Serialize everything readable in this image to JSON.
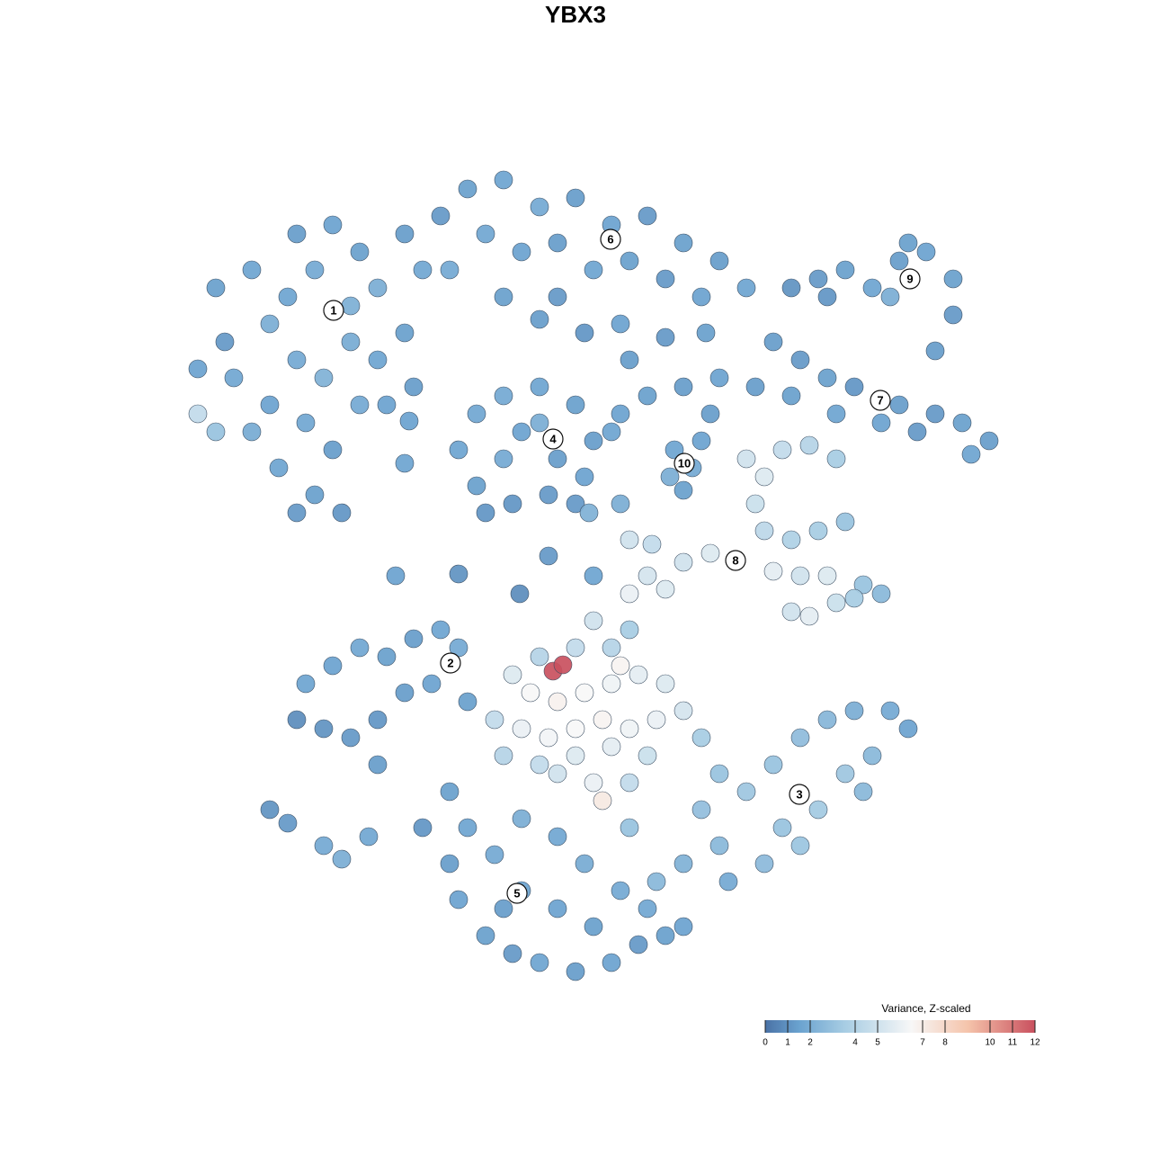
{
  "chart_data": {
    "type": "scatter",
    "title": "YBX3",
    "xlim": [
      190,
      1140
    ],
    "ylim": [
      1100,
      180
    ],
    "x": [
      220,
      250,
      240,
      280,
      300,
      330,
      350,
      370,
      400,
      420,
      450,
      470,
      490,
      330,
      360,
      390,
      420,
      450,
      300,
      340,
      370,
      310,
      350,
      380,
      330,
      280,
      400,
      430,
      460,
      220,
      240,
      260,
      390,
      320,
      520,
      560,
      600,
      640,
      680,
      720,
      760,
      800,
      830,
      540,
      580,
      620,
      660,
      700,
      740,
      780,
      500,
      560,
      620,
      690,
      700,
      650,
      600,
      560,
      600,
      640,
      660,
      650,
      610,
      570,
      530,
      510,
      530,
      580,
      620,
      560,
      600,
      640,
      540,
      880,
      910,
      940,
      970,
      1000,
      1030,
      1060,
      1060,
      1040,
      990,
      920,
      1010,
      860,
      890,
      920,
      950,
      1000,
      1040,
      1070,
      1100,
      1080,
      1020,
      980,
      930,
      880,
      840,
      800,
      760,
      720,
      690,
      680,
      750,
      770,
      745,
      780,
      760,
      790,
      830,
      850,
      870,
      900,
      930,
      840,
      850,
      880,
      910,
      940,
      790,
      760,
      720,
      700,
      740,
      860,
      890,
      920,
      960,
      980,
      900,
      930,
      950,
      880,
      340,
      370,
      400,
      430,
      460,
      490,
      510,
      330,
      360,
      390,
      420,
      450,
      480,
      520,
      420,
      300,
      320,
      360,
      380,
      410,
      570,
      590,
      620,
      650,
      680,
      710,
      740,
      760,
      730,
      700,
      670,
      640,
      610,
      580,
      550,
      560,
      600,
      640,
      680,
      720,
      660,
      670,
      620,
      700,
      600,
      640,
      680,
      700,
      660,
      690,
      615,
      626,
      780,
      800,
      780,
      800,
      830,
      860,
      890,
      920,
      950,
      990,
      1010,
      970,
      940,
      910,
      870,
      850,
      890,
      960,
      810,
      760,
      500,
      520,
      500,
      510,
      540,
      570,
      600,
      640,
      680,
      710,
      740,
      720,
      690,
      650,
      620,
      580,
      550,
      580,
      620,
      660,
      560,
      470,
      760,
      730,
      700,
      440,
      510,
      578,
      610,
      660,
      690,
      700,
      725,
      655,
      740,
      785,
      455,
      450
    ],
    "y": [
      410,
      380,
      320,
      300,
      360,
      260,
      300,
      250,
      280,
      320,
      260,
      300,
      240,
      400,
      420,
      380,
      400,
      370,
      450,
      470,
      500,
      520,
      550,
      570,
      570,
      480,
      450,
      450,
      430,
      460,
      480,
      420,
      340,
      330,
      210,
      200,
      230,
      220,
      250,
      240,
      270,
      290,
      320,
      260,
      280,
      270,
      300,
      290,
      310,
      330,
      300,
      330,
      330,
      360,
      400,
      370,
      355,
      440,
      430,
      450,
      490,
      530,
      550,
      560,
      540,
      500,
      460,
      480,
      510,
      510,
      470,
      560,
      570,
      320,
      310,
      300,
      320,
      290,
      280,
      310,
      350,
      390,
      330,
      330,
      270,
      380,
      400,
      420,
      430,
      450,
      460,
      470,
      490,
      505,
      480,
      470,
      460,
      440,
      430,
      420,
      430,
      440,
      460,
      480,
      500,
      520,
      530,
      490,
      545,
      460,
      510,
      530,
      500,
      495,
      510,
      560,
      590,
      600,
      590,
      580,
      615,
      625,
      640,
      660,
      655,
      635,
      640,
      640,
      650,
      660,
      685,
      670,
      665,
      680,
      760,
      740,
      720,
      730,
      710,
      700,
      720,
      800,
      810,
      820,
      800,
      770,
      760,
      780,
      850,
      900,
      915,
      940,
      955,
      930,
      750,
      770,
      780,
      770,
      760,
      750,
      760,
      790,
      800,
      810,
      800,
      810,
      820,
      810,
      800,
      840,
      850,
      840,
      830,
      840,
      870,
      890,
      860,
      870,
      730,
      720,
      720,
      700,
      690,
      740,
      746,
      739,
      820,
      860,
      900,
      940,
      880,
      850,
      820,
      800,
      790,
      790,
      810,
      840,
      860,
      900,
      920,
      960,
      940,
      880,
      980,
      960,
      880,
      920,
      960,
      1000,
      1040,
      1060,
      1070,
      1080,
      1070,
      1050,
      1040,
      1010,
      990,
      960,
      930,
      910,
      950,
      990,
      1010,
      1030,
      1010,
      920,
      1030,
      980,
      920,
      640,
      638,
      660,
      618,
      640,
      560,
      600,
      605,
      570,
      375,
      370,
      468,
      515
    ],
    "values": [
      1.5,
      1.2,
      1.4,
      1.6,
      2,
      1.3,
      1.8,
      1.5,
      1.4,
      2,
      1.3,
      1.7,
      1.2,
      1.8,
      2.2,
      1.9,
      1.6,
      1.4,
      1.5,
      1.7,
      1.3,
      1.6,
      1.4,
      1.1,
      1.2,
      1.9,
      1.8,
      1.5,
      1.3,
      4.5,
      3,
      1.7,
      2.1,
      1.6,
      1.4,
      1.6,
      1.8,
      1.3,
      1.5,
      1.2,
      1.4,
      1.3,
      1.6,
      1.7,
      1.5,
      1.3,
      1.6,
      1.4,
      1.2,
      1.5,
      1.8,
      1.4,
      1.2,
      1.5,
      1.3,
      1.1,
      1.3,
      1.8,
      1.6,
      1.4,
      1.3,
      1.5,
      1.2,
      1.1,
      1.4,
      1.6,
      1.7,
      1.5,
      1.3,
      1.8,
      2,
      1.2,
      1.1,
      1,
      1.2,
      1.4,
      1.6,
      1.3,
      1.5,
      1.4,
      1.2,
      1.3,
      2,
      1.1,
      1.4,
      1.3,
      1.2,
      1.4,
      1.1,
      1.3,
      1.2,
      1.4,
      1.3,
      1.6,
      1.2,
      1.5,
      1.6,
      1.4,
      1.3,
      1.5,
      1.3,
      1.4,
      1.5,
      1.6,
      1.6,
      1.8,
      2,
      1.5,
      1.4,
      1.3,
      5,
      5.5,
      4.5,
      4,
      3.5,
      4.8,
      4.3,
      3.8,
      3.5,
      3,
      5.5,
      5,
      5.2,
      6,
      5.5,
      5.8,
      5,
      5.5,
      3,
      2.5,
      5.8,
      4.8,
      3.5,
      5,
      1.6,
      1.5,
      1.7,
      1.4,
      1.3,
      1.6,
      1.8,
      0.8,
      1,
      1.2,
      1.1,
      1.3,
      1.5,
      1.4,
      1.3,
      1,
      1.2,
      1.8,
      2,
      1.7,
      5.5,
      6.5,
      6.8,
      6.5,
      6.2,
      5.8,
      5.5,
      5.2,
      6,
      6.2,
      6.7,
      6.5,
      6.3,
      6,
      4.5,
      4,
      4.5,
      5.5,
      5.8,
      4.8,
      6,
      7.2,
      5,
      4.5,
      4,
      4.5,
      4,
      3.5,
      5,
      6.7,
      12,
      12,
      3.5,
      3,
      2.8,
      2.5,
      3.2,
      3,
      2.7,
      2.4,
      2,
      1.8,
      1.5,
      2.5,
      3.2,
      3.4,
      3,
      2.6,
      3.1,
      2.5,
      1.8,
      2.2,
      1.4,
      1.6,
      1.3,
      1.5,
      1.4,
      1.2,
      1.6,
      1.3,
      1.5,
      1.2,
      1.4,
      1.7,
      1.8,
      1.9,
      1.7,
      2,
      1.8,
      1.6,
      1.5,
      1.4,
      1.3,
      1.1,
      1.5,
      2.5,
      3,
      1.5,
      1,
      0.8,
      1.2,
      1.6,
      2,
      5,
      4.5,
      2.2,
      1.2,
      1.4,
      1.5,
      1.6
    ],
    "clusters": [
      {
        "label": "1",
        "x": 371,
        "y": 345
      },
      {
        "label": "2",
        "x": 501,
        "y": 737
      },
      {
        "label": "3",
        "x": 889,
        "y": 883
      },
      {
        "label": "4",
        "x": 615,
        "y": 488
      },
      {
        "label": "5",
        "x": 575,
        "y": 993
      },
      {
        "label": "6",
        "x": 679,
        "y": 266
      },
      {
        "label": "7",
        "x": 979,
        "y": 445
      },
      {
        "label": "8",
        "x": 818,
        "y": 623
      },
      {
        "label": "9",
        "x": 1012,
        "y": 310
      },
      {
        "label": "10",
        "x": 761,
        "y": 515
      }
    ],
    "colorbar": {
      "title": "Variance, Z-scaled",
      "lim": [
        0,
        12
      ],
      "ticks": [
        0,
        1,
        2,
        4,
        5,
        7,
        8,
        10,
        11,
        12
      ],
      "stops": [
        [
          0,
          "#4a72a6"
        ],
        [
          1.5,
          "#6aa2cf"
        ],
        [
          3.5,
          "#a6cce3"
        ],
        [
          6.5,
          "#f7f7f7"
        ],
        [
          9,
          "#f5c4ab"
        ],
        [
          12,
          "#c9505e"
        ]
      ]
    }
  }
}
